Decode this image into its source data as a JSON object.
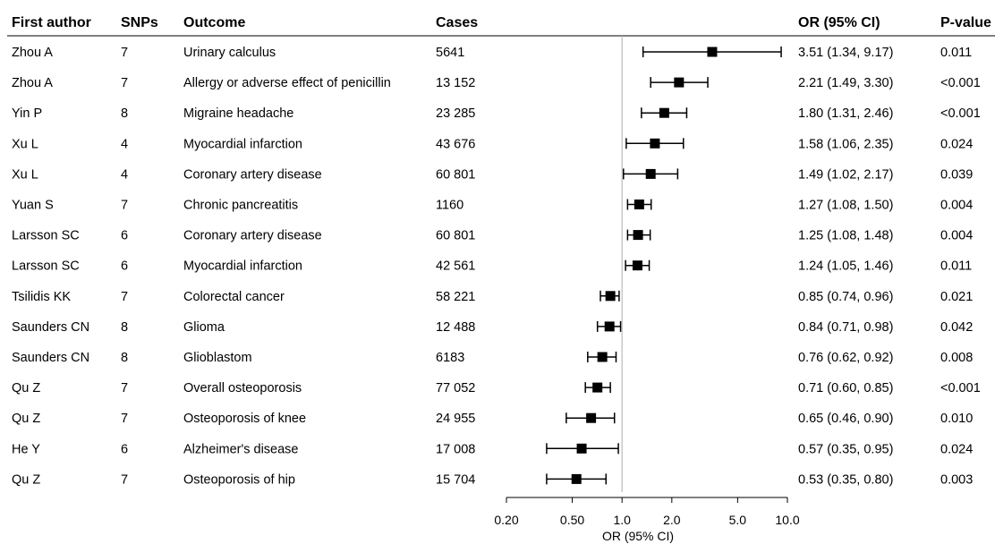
{
  "chart_data": {
    "type": "forest",
    "headers": {
      "author": "First author",
      "snps": "SNPs",
      "outcome": "Outcome",
      "cases": "Cases",
      "or": "OR (95% CI)",
      "p": "P-value"
    },
    "xlabel": "OR (95% CI)",
    "xscale": "log",
    "xlim": [
      0.2,
      10.0
    ],
    "xticks": [
      0.2,
      0.5,
      1.0,
      2.0,
      5.0,
      10.0
    ],
    "xtick_labels": [
      "0.20",
      "0.50",
      "1.0",
      "2.0",
      "5.0",
      "10.0"
    ],
    "reference_line": 1.0,
    "rows": [
      {
        "author": "Zhou A",
        "snps": "7",
        "outcome": "Urinary calculus",
        "cases": "5641",
        "or": 3.51,
        "lo": 1.34,
        "hi": 9.17,
        "or_text": "3.51 (1.34, 9.17)",
        "p": "0.011"
      },
      {
        "author": "Zhou A",
        "snps": "7",
        "outcome": "Allergy or adverse effect of penicillin",
        "cases": "13 152",
        "or": 2.21,
        "lo": 1.49,
        "hi": 3.3,
        "or_text": "2.21 (1.49, 3.30)",
        "p": "<0.001"
      },
      {
        "author": "Yin P",
        "snps": "8",
        "outcome": "Migraine headache",
        "cases": "23 285",
        "or": 1.8,
        "lo": 1.31,
        "hi": 2.46,
        "or_text": "1.80 (1.31, 2.46)",
        "p": "<0.001"
      },
      {
        "author": "Xu L",
        "snps": "4",
        "outcome": "Myocardial infarction",
        "cases": "43 676",
        "or": 1.58,
        "lo": 1.06,
        "hi": 2.35,
        "or_text": "1.58 (1.06, 2.35)",
        "p": "0.024"
      },
      {
        "author": "Xu L",
        "snps": "4",
        "outcome": "Coronary artery disease",
        "cases": "60 801",
        "or": 1.49,
        "lo": 1.02,
        "hi": 2.17,
        "or_text": "1.49 (1.02, 2.17)",
        "p": "0.039"
      },
      {
        "author": "Yuan S",
        "snps": "7",
        "outcome": "Chronic pancreatitis",
        "cases": "1160",
        "or": 1.27,
        "lo": 1.08,
        "hi": 1.5,
        "or_text": "1.27 (1.08, 1.50)",
        "p": "0.004"
      },
      {
        "author": "Larsson SC",
        "snps": "6",
        "outcome": "Coronary artery disease",
        "cases": "60 801",
        "or": 1.25,
        "lo": 1.08,
        "hi": 1.48,
        "or_text": "1.25 (1.08, 1.48)",
        "p": "0.004"
      },
      {
        "author": "Larsson SC",
        "snps": "6",
        "outcome": "Myocardial infarction",
        "cases": "42 561",
        "or": 1.24,
        "lo": 1.05,
        "hi": 1.46,
        "or_text": "1.24 (1.05, 1.46)",
        "p": "0.011"
      },
      {
        "author": "Tsilidis KK",
        "snps": "7",
        "outcome": "Colorectal cancer",
        "cases": "58 221",
        "or": 0.85,
        "lo": 0.74,
        "hi": 0.96,
        "or_text": "0.85 (0.74, 0.96)",
        "p": "0.021"
      },
      {
        "author": "Saunders CN",
        "snps": "8",
        "outcome": "Glioma",
        "cases": "12 488",
        "or": 0.84,
        "lo": 0.71,
        "hi": 0.98,
        "or_text": "0.84 (0.71, 0.98)",
        "p": "0.042"
      },
      {
        "author": "Saunders CN",
        "snps": "8",
        "outcome": "Glioblastom",
        "cases": "6183",
        "or": 0.76,
        "lo": 0.62,
        "hi": 0.92,
        "or_text": "0.76 (0.62, 0.92)",
        "p": "0.008"
      },
      {
        "author": "Qu Z",
        "snps": "7",
        "outcome": "Overall osteoporosis",
        "cases": "77 052",
        "or": 0.71,
        "lo": 0.6,
        "hi": 0.85,
        "or_text": "0.71 (0.60, 0.85)",
        "p": "<0.001"
      },
      {
        "author": "Qu Z",
        "snps": "7",
        "outcome": "Osteoporosis of knee",
        "cases": "24 955",
        "or": 0.65,
        "lo": 0.46,
        "hi": 0.9,
        "or_text": "0.65 (0.46, 0.90)",
        "p": "0.010"
      },
      {
        "author": "He Y",
        "snps": "6",
        "outcome": "Alzheimer's disease",
        "cases": "17 008",
        "or": 0.57,
        "lo": 0.35,
        "hi": 0.95,
        "or_text": "0.57 (0.35, 0.95)",
        "p": "0.024"
      },
      {
        "author": "Qu Z",
        "snps": "7",
        "outcome": "Osteoporosis of hip",
        "cases": "15 704",
        "or": 0.53,
        "lo": 0.35,
        "hi": 0.8,
        "or_text": "0.53 (0.35, 0.80)",
        "p": "0.003"
      }
    ],
    "colors": {
      "marker": "#000000",
      "reference": "#bbbbbb",
      "rule": "#000000"
    }
  }
}
